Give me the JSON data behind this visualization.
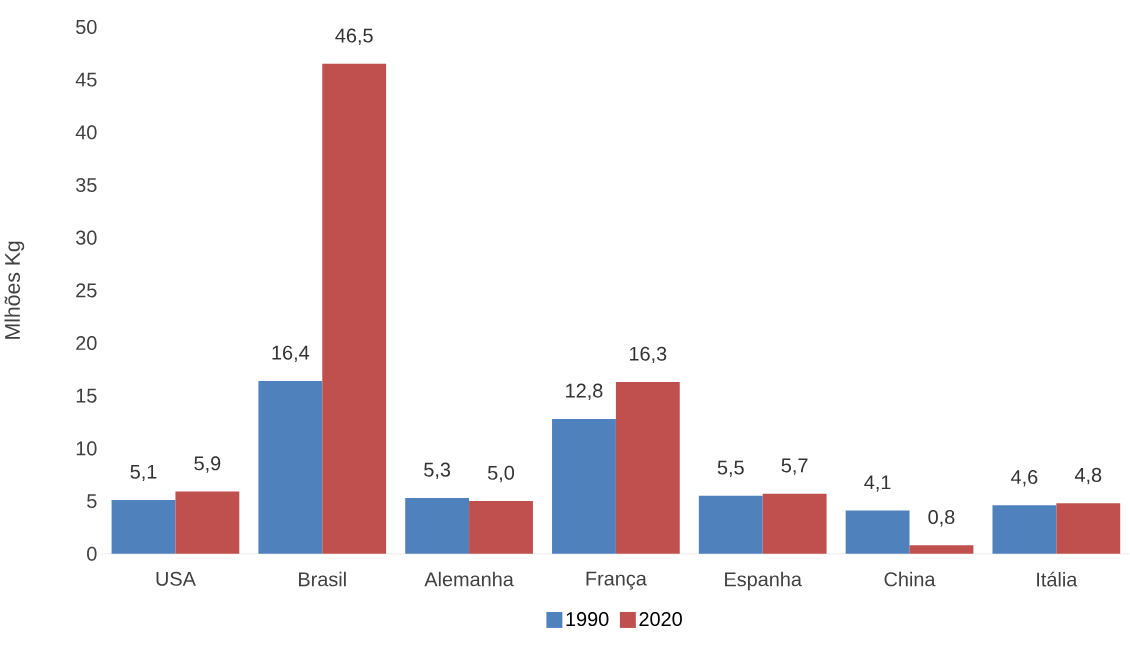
{
  "chart_data": {
    "type": "bar",
    "ylabel": "Mlhões Kg",
    "categories": [
      "USA",
      "Brasil",
      "Alemanha",
      "França",
      "Espanha",
      "China",
      "Itália"
    ],
    "series": [
      {
        "name": "1990",
        "color": "#4f81bd",
        "values": [
          5.1,
          16.4,
          5.3,
          12.8,
          5.5,
          4.1,
          4.6
        ],
        "value_labels": [
          "5,1",
          "16,4",
          "5,3",
          "12,8",
          "5,5",
          "4,1",
          "4,6"
        ]
      },
      {
        "name": "2020",
        "color": "#c0504d",
        "values": [
          5.9,
          46.5,
          5.0,
          16.3,
          5.7,
          0.8,
          4.8
        ],
        "value_labels": [
          "5,9",
          "46,5",
          "5,0",
          "16,3",
          "5,7",
          "0,8",
          "4,8"
        ]
      }
    ],
    "ylim": [
      0,
      50
    ],
    "yticks": [
      0,
      5,
      10,
      15,
      20,
      25,
      30,
      35,
      40,
      45,
      50
    ],
    "legend": "bottom"
  }
}
